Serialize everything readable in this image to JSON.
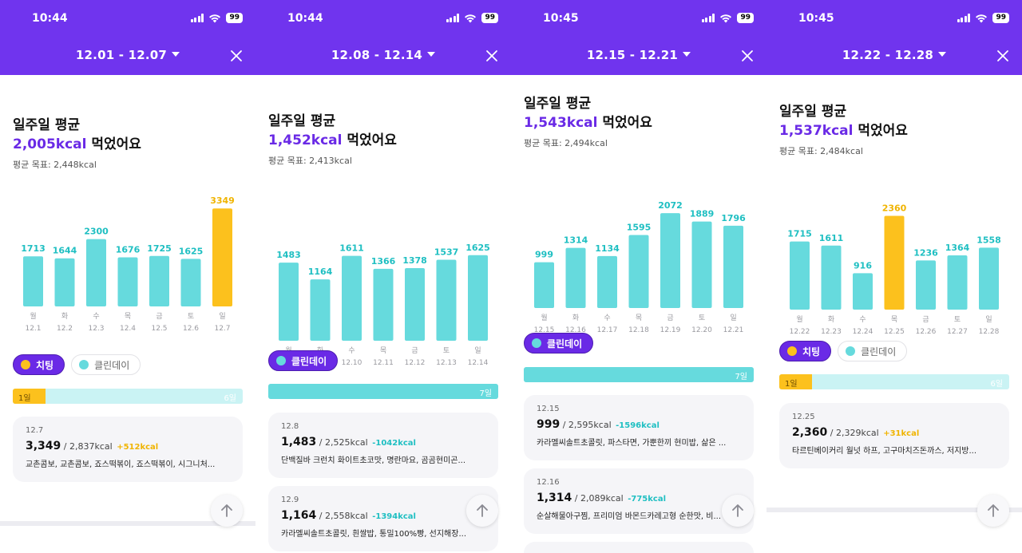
{
  "colors": {
    "header": "#7034ee",
    "accent": "#6a2ae6",
    "clean": "#66dadd",
    "cheat": "#fcc11d",
    "over": "#f0b400",
    "under": "#1fbfc2",
    "day_label": "#9a9aa0"
  },
  "icons": {
    "close": "close-icon",
    "dropdown": "chevron-down-icon",
    "top": "arrow-up-icon"
  },
  "panels": [
    {
      "status": {
        "time": "10:44",
        "battery": "99"
      },
      "header": {
        "range": "12.01 - 12.07"
      },
      "summary": {
        "title": "일주일 평균",
        "kcal": "2,005kcal",
        "suffix": "먹었어요",
        "goal": "평균 목표: 2,448kcal"
      },
      "chart_data": {
        "type": "bar",
        "categories": [
          "월",
          "화",
          "수",
          "목",
          "금",
          "토",
          "일"
        ],
        "dates": [
          "12.1",
          "12.2",
          "12.3",
          "12.4",
          "12.5",
          "12.6",
          "12.7"
        ],
        "values": [
          1713,
          1644,
          2300,
          1676,
          1725,
          1625,
          3349
        ],
        "highlight": [
          false,
          false,
          false,
          false,
          false,
          false,
          true
        ]
      },
      "chips": [
        {
          "label": "치팅",
          "type": "cheat",
          "selected": true
        },
        {
          "label": "클린데이",
          "type": "clean",
          "selected": false
        }
      ],
      "progress": {
        "cheat_days": 1,
        "clean_days": 0,
        "total_days": 7,
        "left_label": "1일",
        "right_label": "6일"
      },
      "cards": [
        {
          "date": "12.7",
          "eaten": "3,349",
          "goal": "/ 2,837kcal",
          "diff": "+512kcal",
          "diff_type": "over",
          "foods": "교촌콤보, 교촌콤보, 죠스떡볶이, 죠스떡볶이, 시그니처..."
        }
      ]
    },
    {
      "status": {
        "time": "10:44",
        "battery": "99"
      },
      "header": {
        "range": "12.08 - 12.14"
      },
      "summary": {
        "title": "일주일 평균",
        "kcal": "1,452kcal",
        "suffix": "먹었어요",
        "goal": "평균 목표: 2,413kcal"
      },
      "chart_data": {
        "type": "bar",
        "categories": [
          "월",
          "화",
          "수",
          "목",
          "금",
          "토",
          "일"
        ],
        "dates": [
          "12.8",
          "12.9",
          "12.10",
          "12.11",
          "12.12",
          "12.13",
          "12.14"
        ],
        "values": [
          1483,
          1164,
          1611,
          1366,
          1378,
          1537,
          1625
        ],
        "highlight": [
          false,
          false,
          false,
          false,
          false,
          false,
          false
        ]
      },
      "chips": [
        {
          "label": "클린데이",
          "type": "clean",
          "selected": true
        }
      ],
      "progress": {
        "cheat_days": 0,
        "clean_days": 7,
        "total_days": 7,
        "left_label": "",
        "right_label": "7일"
      },
      "cards": [
        {
          "date": "12.8",
          "eaten": "1,483",
          "goal": "/ 2,525kcal",
          "diff": "-1042kcal",
          "diff_type": "under",
          "foods": "단백질바 크런치 화이트초코맛, 명란마요, 곰곰현미곤..."
        },
        {
          "date": "12.9",
          "eaten": "1,164",
          "goal": "/ 2,558kcal",
          "diff": "-1394kcal",
          "diff_type": "under",
          "foods": "카라멜씨솔트초콜릿, 흰쌀밥, 통밀100%빵, 선지해장..."
        }
      ]
    },
    {
      "status": {
        "time": "10:45",
        "battery": "99"
      },
      "header": {
        "range": "12.15 - 12.21"
      },
      "summary": {
        "title": "일주일 평균",
        "kcal": "1,543kcal",
        "suffix": "먹었어요",
        "goal": "평균 목표: 2,494kcal"
      },
      "chart_data": {
        "type": "bar",
        "categories": [
          "월",
          "화",
          "수",
          "목",
          "금",
          "토",
          "일"
        ],
        "dates": [
          "12.15",
          "12.16",
          "12.17",
          "12.18",
          "12.19",
          "12.20",
          "12.21"
        ],
        "values": [
          999,
          1314,
          1134,
          1595,
          2072,
          1889,
          1796
        ],
        "highlight": [
          false,
          false,
          false,
          false,
          false,
          false,
          false
        ]
      },
      "chips": [
        {
          "label": "클린데이",
          "type": "clean",
          "selected": true
        }
      ],
      "progress": {
        "cheat_days": 0,
        "clean_days": 7,
        "total_days": 7,
        "left_label": "",
        "right_label": "7일"
      },
      "cards": [
        {
          "date": "12.15",
          "eaten": "999",
          "goal": "/ 2,595kcal",
          "diff": "-1596kcal",
          "diff_type": "under",
          "foods": "카라멜씨솔트초콜릿, 파스타면, 가뿐한끼 현미밥, 삶은 ..."
        },
        {
          "date": "12.16",
          "eaten": "1,314",
          "goal": "/ 2,089kcal",
          "diff": "-775kcal",
          "diff_type": "under",
          "foods": "순살해물아구찜, 프리미엄 바몬드카레고형 순한맛, 비..."
        }
      ]
    },
    {
      "status": {
        "time": "10:45",
        "battery": "99"
      },
      "header": {
        "range": "12.22 - 12.28"
      },
      "summary": {
        "title": "일주일 평균",
        "kcal": "1,537kcal",
        "suffix": "먹었어요",
        "goal": "평균 목표: 2,484kcal"
      },
      "chart_data": {
        "type": "bar",
        "categories": [
          "월",
          "화",
          "수",
          "목",
          "금",
          "토",
          "일"
        ],
        "dates": [
          "12.22",
          "12.23",
          "12.24",
          "12.25",
          "12.26",
          "12.27",
          "12.28"
        ],
        "values": [
          1715,
          1611,
          916,
          2360,
          1236,
          1364,
          1558
        ],
        "highlight": [
          false,
          false,
          false,
          true,
          false,
          false,
          false
        ]
      },
      "chips": [
        {
          "label": "치팅",
          "type": "cheat",
          "selected": true
        },
        {
          "label": "클린데이",
          "type": "clean",
          "selected": false
        }
      ],
      "progress": {
        "cheat_days": 1,
        "clean_days": 0,
        "total_days": 7,
        "left_label": "1일",
        "right_label": "6일"
      },
      "cards": [
        {
          "date": "12.25",
          "eaten": "2,360",
          "goal": "/ 2,329kcal",
          "diff": "+31kcal",
          "diff_type": "over",
          "foods": "타르틴베이커리 월넛 하프, 고구마치즈돈까스, 저지방..."
        }
      ]
    }
  ]
}
